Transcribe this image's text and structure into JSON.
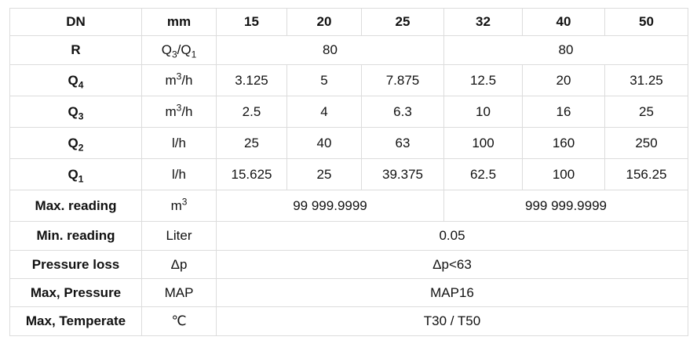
{
  "table": {
    "header": [
      "DN",
      "mm",
      "15",
      "20",
      "25",
      "32",
      "40",
      "50"
    ],
    "rows": [
      [
        "R",
        [
          "Q",
          "3",
          "/Q",
          "1"
        ],
        "80",
        "80"
      ],
      [
        [
          "Q",
          "4"
        ],
        [
          "m",
          "3",
          "/h"
        ],
        "3.125",
        "5",
        "7.875",
        "12.5",
        "20",
        "31.25"
      ],
      [
        [
          "Q",
          "3"
        ],
        [
          "m",
          "3",
          "/h"
        ],
        "2.5",
        "4",
        "6.3",
        "10",
        "16",
        "25"
      ],
      [
        [
          "Q",
          "2"
        ],
        "l/h",
        "25",
        "40",
        "63",
        "100",
        "160",
        "250"
      ],
      [
        [
          "Q",
          "1"
        ],
        "l/h",
        "15.625",
        "25",
        "39.375",
        "62.5",
        "100",
        "156.25"
      ],
      [
        "Max. reading",
        [
          "m",
          "3"
        ],
        "99 999.9999",
        "999 999.9999"
      ],
      [
        "Min. reading",
        "Liter",
        "0.05"
      ],
      [
        "Pressure loss",
        "Δp",
        "Δp<63"
      ],
      [
        "Max, Pressure",
        "MAP",
        "MAP16"
      ],
      [
        "Max, Temperate",
        "℃",
        "T30 / T50"
      ]
    ]
  }
}
